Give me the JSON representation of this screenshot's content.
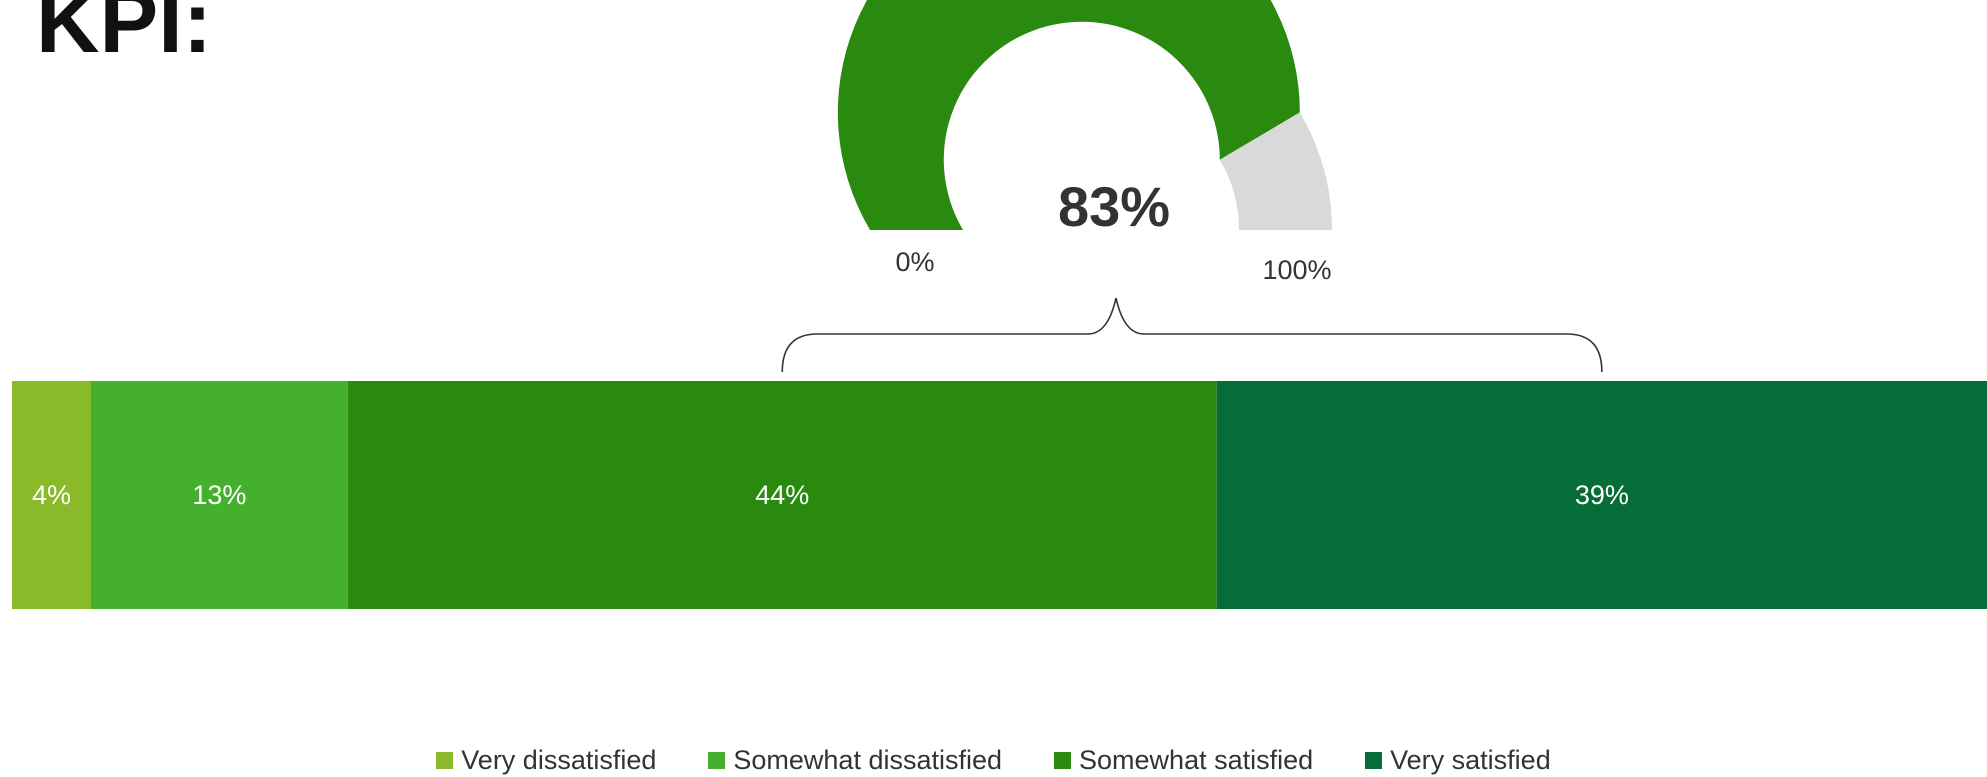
{
  "title": "KPI:",
  "chart_data": [
    {
      "type": "gauge",
      "value": 83,
      "value_label": "83%",
      "min_label": "0%",
      "max_label": "100%",
      "range": [
        0,
        100
      ],
      "fill_color": "#2a8a0f",
      "track_color": "#d9d9d9"
    },
    {
      "type": "bar",
      "orientation": "horizontal",
      "stacked": true,
      "percent_stacked": true,
      "series": [
        {
          "name": "Very dissatisfied",
          "values": [
            4
          ],
          "label": "4%",
          "color": "#8aba2a"
        },
        {
          "name": "Somewhat dissatisfied",
          "values": [
            13
          ],
          "label": "13%",
          "color": "#44b02e"
        },
        {
          "name": "Somewhat satisfied",
          "values": [
            44
          ],
          "label": "44%",
          "color": "#2a8a0f"
        },
        {
          "name": "Very satisfied",
          "values": [
            39
          ],
          "label": "39%",
          "color": "#066c38"
        }
      ],
      "legend_position": "bottom",
      "grid": false,
      "annotation": "brace grouping Somewhat satisfied and Very satisfied, pointing to the gauge"
    }
  ]
}
